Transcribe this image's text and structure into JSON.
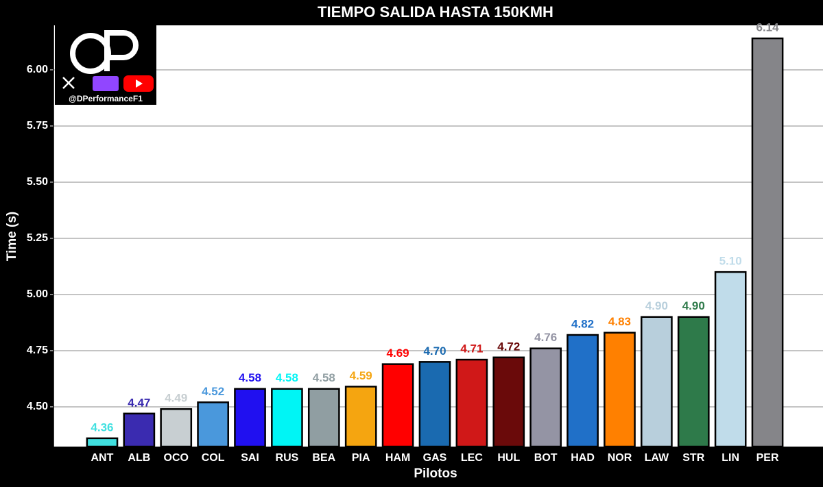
{
  "chart_data": {
    "type": "bar",
    "title": "TIEMPO SALIDA HASTA 150KMH",
    "xlabel": "Pilotos",
    "ylabel": "Time (s)",
    "watermark": "@DPerformanceF1",
    "categories": [
      "ANT",
      "ALB",
      "OCO",
      "COL",
      "SAI",
      "RUS",
      "BEA",
      "PIA",
      "HAM",
      "GAS",
      "LEC",
      "HUL",
      "BOT",
      "HAD",
      "NOR",
      "LAW",
      "STR",
      "LIN",
      "PER"
    ],
    "values": [
      4.36,
      4.47,
      4.49,
      4.52,
      4.58,
      4.58,
      4.58,
      4.59,
      4.69,
      4.7,
      4.71,
      4.72,
      4.76,
      4.82,
      4.83,
      4.9,
      4.9,
      5.1,
      6.14
    ],
    "value_labels": [
      "4.36",
      "4.47",
      "4.49",
      "4.52",
      "4.58",
      "4.58",
      "4.58",
      "4.59",
      "4.69",
      "4.70",
      "4.71",
      "4.72",
      "4.76",
      "4.82",
      "4.83",
      "4.90",
      "4.90",
      "5.10",
      "6.14"
    ],
    "colors": [
      "#40e0e0",
      "#3a2bb0",
      "#c8cfd2",
      "#4a98dc",
      "#2010f0",
      "#00f5f5",
      "#909ea2",
      "#f5a510",
      "#ff0000",
      "#1a6ab0",
      "#d01818",
      "#6a0a0a",
      "#9494a4",
      "#2070c8",
      "#ff8000",
      "#b8cfdc",
      "#2e7a4a",
      "#c0dcea",
      "#858589"
    ],
    "ylim": [
      4.323,
      6.198
    ],
    "yticks": [
      {
        "value": 4.5,
        "label": "4.50"
      },
      4.75,
      {
        "value": 5.0,
        "label": "5.00"
      },
      5.25,
      {
        "value": 5.5,
        "label": "5.50"
      },
      5.75,
      {
        "value": 6.0,
        "label": "6.00"
      }
    ],
    "grid": true
  }
}
